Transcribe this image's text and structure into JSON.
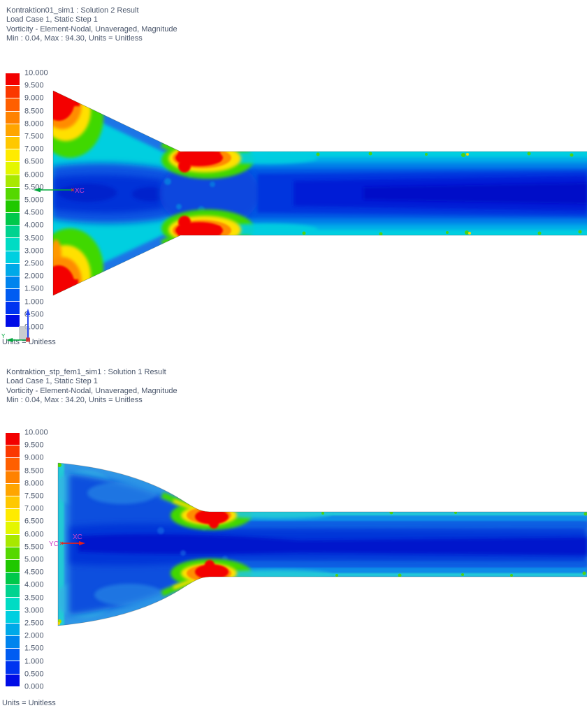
{
  "panel1": {
    "header": {
      "line1": "Kontraktion01_sim1 : Solution 2 Result",
      "line2": "Load Case 1, Static Step 1",
      "line3": "Vorticity - Element-Nodal, Unaveraged, Magnitude",
      "line4": "Min : 0.04, Max : 94.30, Units = Unitless"
    },
    "units_label": "Units = Unitless",
    "triad": {
      "x_label": "XC"
    },
    "csys": {
      "y_label": "Y"
    }
  },
  "panel2": {
    "header": {
      "line1": "Kontraktion_stp_fem1_sim1 : Solution 1 Result",
      "line2": "Load Case 1, Static Step 1",
      "line3": "Vorticity - Element-Nodal, Unaveraged, Magnitude",
      "line4": "Min : 0.04, Max : 34.20, Units = Unitless"
    },
    "units_label": "Units = Unitless",
    "triad": {
      "x_label": "XC",
      "y_label": "YC"
    }
  },
  "legend": {
    "labels": [
      "10.000",
      "9.500",
      "9.000",
      "8.500",
      "8.000",
      "7.500",
      "7.000",
      "6.500",
      "6.000",
      "5.500",
      "5.000",
      "4.500",
      "4.000",
      "3.500",
      "3.000",
      "2.500",
      "2.000",
      "1.500",
      "1.000",
      "0.500",
      "0.000"
    ],
    "band_colors": [
      "#f20000",
      "#fb3800",
      "#ff5f00",
      "#ff8200",
      "#ffa500",
      "#ffc800",
      "#ffeb00",
      "#e4f600",
      "#a8e800",
      "#55d800",
      "#1fc800",
      "#00c84a",
      "#00d38f",
      "#00dcc4",
      "#00cfe0",
      "#00a9e8",
      "#0084ee",
      "#005cf2",
      "#0034f0",
      "#000ce6"
    ]
  },
  "colors": {
    "header_text": "#4a566b",
    "triad_label": "#cf43c8",
    "triad_green": "#00a83c",
    "triad_red": "#e02020",
    "triad_blue": "#2847f0"
  }
}
